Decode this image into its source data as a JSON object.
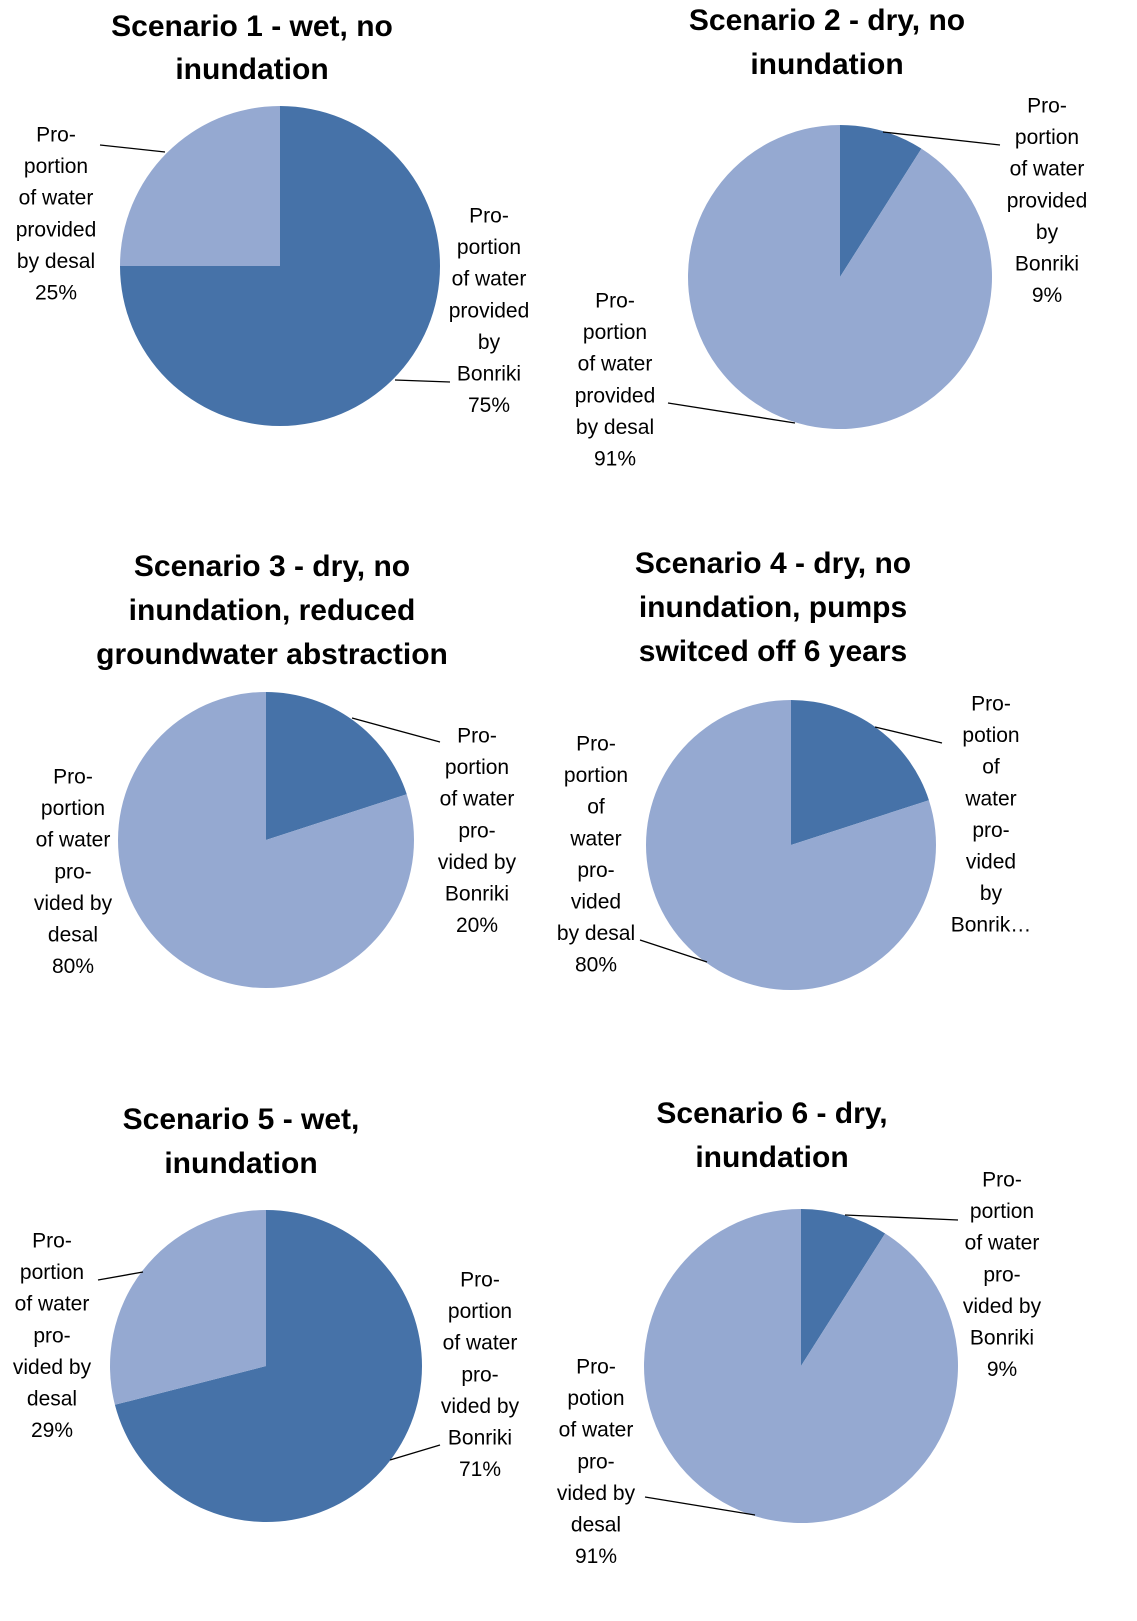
{
  "chart_data": [
    {
      "type": "pie",
      "title": [
        "Scenario 1 - wet, no",
        "inundation"
      ],
      "categories": [
        [
          "Pro-",
          "portion",
          "of water",
          "provided",
          "by",
          "Bonriki"
        ],
        [
          "Pro-",
          "portion",
          "of water",
          "provided",
          "by desal"
        ]
      ],
      "values": [
        75,
        25
      ],
      "value_labels": [
        "75%",
        "25%"
      ],
      "colors": [
        "#4672a8",
        "#95a9d1"
      ]
    },
    {
      "type": "pie",
      "title": [
        "Scenario 2 - dry, no",
        "inundation"
      ],
      "categories": [
        [
          "Pro-",
          "portion",
          "of water",
          "provided",
          "by",
          "Bonriki"
        ],
        [
          "Pro-",
          "portion",
          "of water",
          "provided",
          "by desal"
        ]
      ],
      "values": [
        9,
        91
      ],
      "value_labels": [
        "9%",
        "91%"
      ],
      "colors": [
        "#4672a8",
        "#95a9d1"
      ]
    },
    {
      "type": "pie",
      "title": [
        "Scenario 3 - dry, no",
        "inundation, reduced",
        "groundwater abstraction"
      ],
      "categories": [
        [
          "Pro-",
          "portion",
          "of water",
          "pro-",
          "vided by",
          "Bonriki"
        ],
        [
          "Pro-",
          "portion",
          "of water",
          "pro-",
          "vided by",
          "desal"
        ]
      ],
      "values": [
        20,
        80
      ],
      "value_labels": [
        "20%",
        "80%"
      ],
      "colors": [
        "#4672a8",
        "#95a9d1"
      ]
    },
    {
      "type": "pie",
      "title": [
        "Scenario 4 - dry, no",
        "inundation, pumps",
        "switced off 6 years"
      ],
      "categories": [
        [
          "Pro-",
          "potion",
          "of",
          "water",
          "pro-",
          "vided",
          "by",
          "Bonrik…"
        ],
        [
          "Pro-",
          "portion",
          "of",
          "water",
          "pro-",
          "vided",
          "by desal"
        ]
      ],
      "values": [
        20,
        80
      ],
      "value_labels": [
        null,
        "80%"
      ],
      "colors": [
        "#4672a8",
        "#95a9d1"
      ]
    },
    {
      "type": "pie",
      "title": [
        "Scenario 5 - wet,",
        "inundation"
      ],
      "categories": [
        [
          "Pro-",
          "portion",
          "of water",
          "pro-",
          "vided by",
          "Bonriki"
        ],
        [
          "Pro-",
          "portion",
          "of water",
          "pro-",
          "vided by",
          "desal"
        ]
      ],
      "values": [
        71,
        29
      ],
      "value_labels": [
        "71%",
        "29%"
      ],
      "colors": [
        "#4672a8",
        "#95a9d1"
      ]
    },
    {
      "type": "pie",
      "title": [
        "Scenario 6 - dry,",
        "inundation"
      ],
      "categories": [
        [
          "Pro-",
          "portion",
          "of water",
          "pro-",
          "vided by",
          "Bonriki"
        ],
        [
          "Pro-",
          "potion",
          "of water",
          "pro-",
          "vided by",
          "desal"
        ]
      ],
      "values": [
        9,
        91
      ],
      "value_labels": [
        "9%",
        "91%"
      ],
      "colors": [
        "#4672a8",
        "#95a9d1"
      ]
    }
  ]
}
